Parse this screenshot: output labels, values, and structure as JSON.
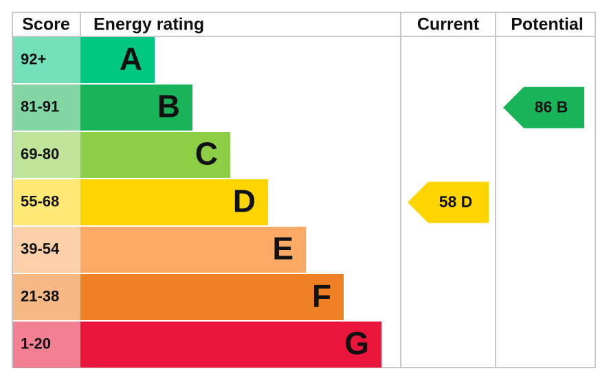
{
  "header": {
    "score": "Score",
    "energy_rating": "Energy rating",
    "current": "Current",
    "potential": "Potential"
  },
  "bands": [
    {
      "score": "92+",
      "letter": "A",
      "color": "#00c781"
    },
    {
      "score": "81-91",
      "letter": "B",
      "color": "#19b459"
    },
    {
      "score": "69-80",
      "letter": "C",
      "color": "#8dce46"
    },
    {
      "score": "55-68",
      "letter": "D",
      "color": "#ffd500"
    },
    {
      "score": "39-54",
      "letter": "E",
      "color": "#fcaa65"
    },
    {
      "score": "21-38",
      "letter": "F",
      "color": "#ef8023"
    },
    {
      "score": "1-20",
      "letter": "G",
      "color": "#e9153b"
    }
  ],
  "current": {
    "value": 58,
    "label": "58 D"
  },
  "potential": {
    "value": 86,
    "label": "86 B"
  }
}
